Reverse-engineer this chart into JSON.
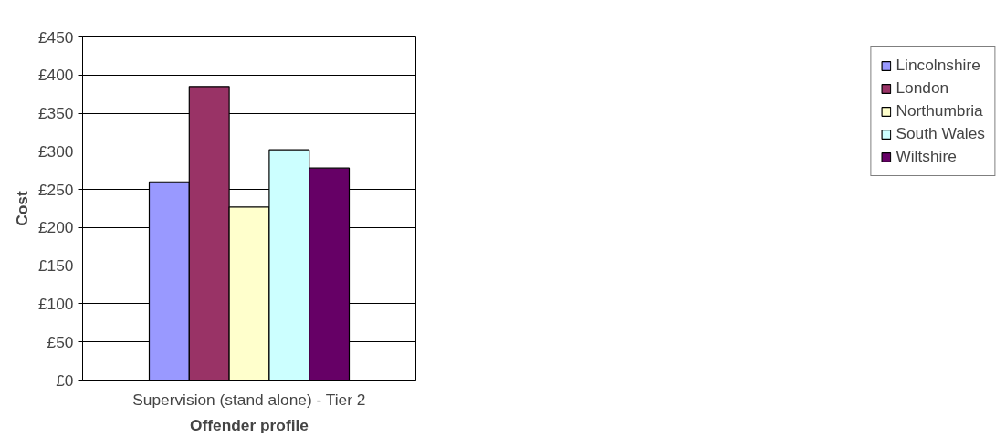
{
  "chart_data": {
    "type": "bar",
    "xlabel": "Offender profile",
    "ylabel": "Cost",
    "categories": [
      "Supervision (stand alone) - Tier 2"
    ],
    "series": [
      {
        "name": "Lincolnshire",
        "color": "#9999ff",
        "values": [
          260
        ]
      },
      {
        "name": "London",
        "color": "#993366",
        "values": [
          385
        ]
      },
      {
        "name": "Northumbria",
        "color": "#ffffcc",
        "values": [
          227
        ]
      },
      {
        "name": "South Wales",
        "color": "#ccffff",
        "values": [
          302
        ]
      },
      {
        "name": "Wiltshire",
        "color": "#660066",
        "values": [
          278
        ]
      }
    ],
    "ylim": [
      0,
      450
    ],
    "yticks": [
      {
        "value": 0,
        "label": "£0"
      },
      {
        "value": 50,
        "label": "£50"
      },
      {
        "value": 100,
        "label": "£100"
      },
      {
        "value": 150,
        "label": "£150"
      },
      {
        "value": 200,
        "label": "£200"
      },
      {
        "value": 250,
        "label": "£250"
      },
      {
        "value": 300,
        "label": "£300"
      },
      {
        "value": 350,
        "label": "£350"
      },
      {
        "value": 400,
        "label": "£400"
      },
      {
        "value": 450,
        "label": "£450"
      }
    ],
    "grid": "y",
    "legend": "right"
  }
}
